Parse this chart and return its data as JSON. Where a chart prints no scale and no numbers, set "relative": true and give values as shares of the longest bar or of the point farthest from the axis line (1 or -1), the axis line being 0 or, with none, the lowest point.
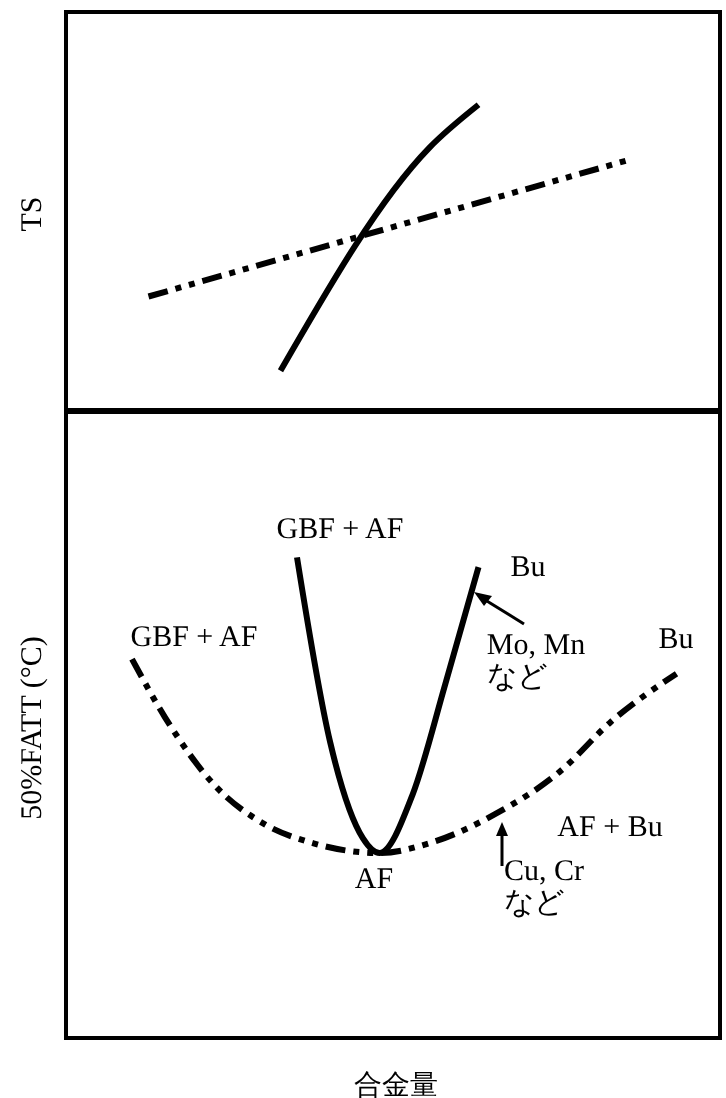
{
  "chart_data": [
    {
      "type": "line",
      "ylabel": "TS",
      "relative": true,
      "categories": [
        null,
        null,
        null,
        null,
        null,
        null,
        null,
        null,
        null,
        null,
        null,
        null,
        null,
        null,
        null,
        null,
        null,
        null,
        null,
        null,
        null,
        null,
        null,
        null,
        null,
        null,
        null,
        null,
        null,
        null,
        null,
        null,
        null,
        null,
        null,
        null,
        null,
        null,
        null,
        null,
        null
      ],
      "series": [
        {
          "color": "#000000",
          "line_style": "solid",
          "values": [
            null,
            null,
            null,
            null,
            null,
            null,
            null,
            null,
            null,
            null,
            null,
            null,
            null,
            0.14,
            null,
            null,
            null,
            null,
            null,
            null,
            null,
            null,
            0.86,
            null,
            null,
            1,
            null,
            null,
            null,
            null,
            null,
            null,
            null,
            null,
            null,
            null,
            null,
            null,
            null,
            null,
            null
          ]
        },
        {
          "color": "#000000",
          "line_style": "dashed",
          "values": [
            null,
            null,
            null,
            null,
            null,
            0.38,
            null,
            null,
            null,
            null,
            null,
            null,
            null,
            null,
            null,
            null,
            null,
            null,
            null,
            null,
            null,
            null,
            null,
            null,
            null,
            null,
            null,
            null,
            null,
            null,
            null,
            null,
            null,
            null,
            0.82,
            null,
            null,
            null,
            null,
            null,
            null
          ]
        }
      ]
    },
    {
      "type": "line",
      "ylabel": "50%FATT (°C)",
      "xlabel": "合金量",
      "relative": true,
      "categories": [
        null,
        null,
        null,
        null,
        null,
        null,
        null,
        null,
        null,
        null,
        null,
        null,
        null,
        null,
        null,
        null,
        null,
        null,
        null,
        null,
        null,
        null,
        null,
        null,
        null,
        null,
        null,
        null,
        null,
        null,
        null,
        null,
        null,
        null,
        null,
        null,
        null,
        null,
        null,
        null,
        null
      ],
      "series": [
        {
          "color": "#000000",
          "line_style": "solid",
          "values": [
            null,
            null,
            null,
            null,
            null,
            null,
            null,
            null,
            null,
            null,
            null,
            null,
            null,
            null,
            1,
            null,
            0.62,
            null,
            0.42,
            0.39,
            null,
            0.51,
            null,
            0.74,
            null,
            0.98,
            null,
            null,
            null,
            null,
            null,
            null,
            null,
            null,
            null,
            null,
            null,
            null,
            null,
            null,
            null
          ]
        },
        {
          "color": "#000000",
          "line_style": "dashed",
          "values": [
            null,
            null,
            null,
            null,
            0.79,
            null,
            0.67,
            null,
            null,
            0.53,
            null,
            null,
            0.45,
            null,
            null,
            0.41,
            null,
            null,
            null,
            0.39,
            null,
            null,
            0.41,
            null,
            null,
            null,
            0.47,
            null,
            null,
            null,
            0.56,
            null,
            null,
            0.66,
            null,
            null,
            null,
            0.76,
            null,
            null,
            null
          ]
        }
      ],
      "annotations": [
        "GBF + AF",
        "Bu",
        "GBF + AF",
        "Mo, Mn\nなど",
        "Bu",
        "AF + Bu",
        "AF",
        "Cu, Cr\nなど"
      ]
    }
  ]
}
